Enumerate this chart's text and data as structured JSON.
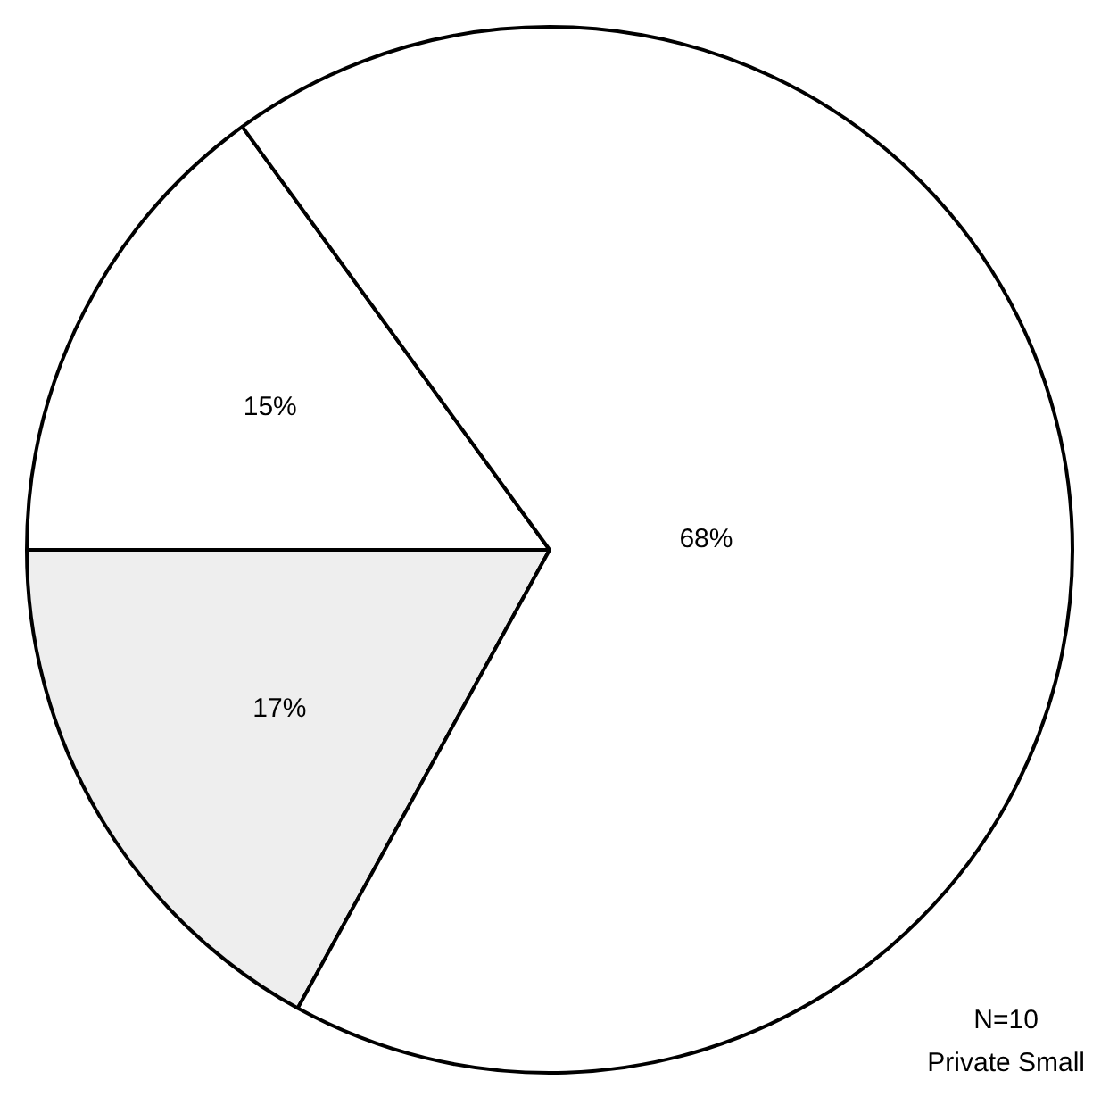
{
  "chart_data": {
    "type": "pie",
    "categories": [
      null,
      null,
      null
    ],
    "values": [
      17,
      15,
      68
    ],
    "colors": [
      "#eeeeee",
      "#ffffff",
      "#ffffff"
    ],
    "value_labels": [
      "17%",
      "15%",
      "68%"
    ],
    "annotations": [
      "N=10",
      "Private Small"
    ],
    "legend": false
  }
}
